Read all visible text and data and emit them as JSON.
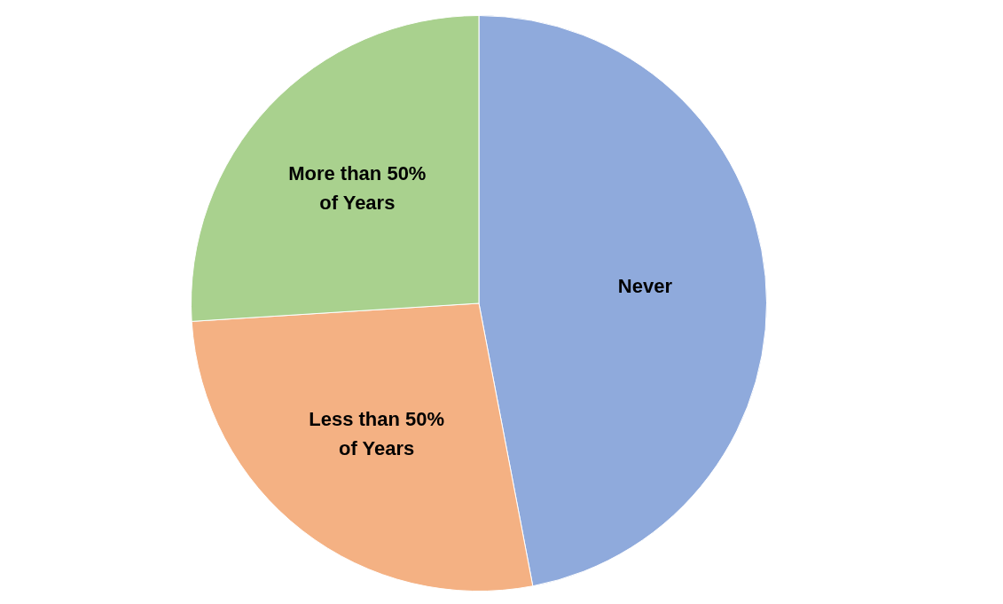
{
  "chart_data": {
    "type": "pie",
    "categories": [
      "Never",
      "Less than 50% of Years",
      "More than 50% of Years"
    ],
    "values": [
      47,
      27,
      26
    ],
    "colors": [
      "#8faadc",
      "#f4b183",
      "#a9d18e"
    ],
    "legend": false
  }
}
